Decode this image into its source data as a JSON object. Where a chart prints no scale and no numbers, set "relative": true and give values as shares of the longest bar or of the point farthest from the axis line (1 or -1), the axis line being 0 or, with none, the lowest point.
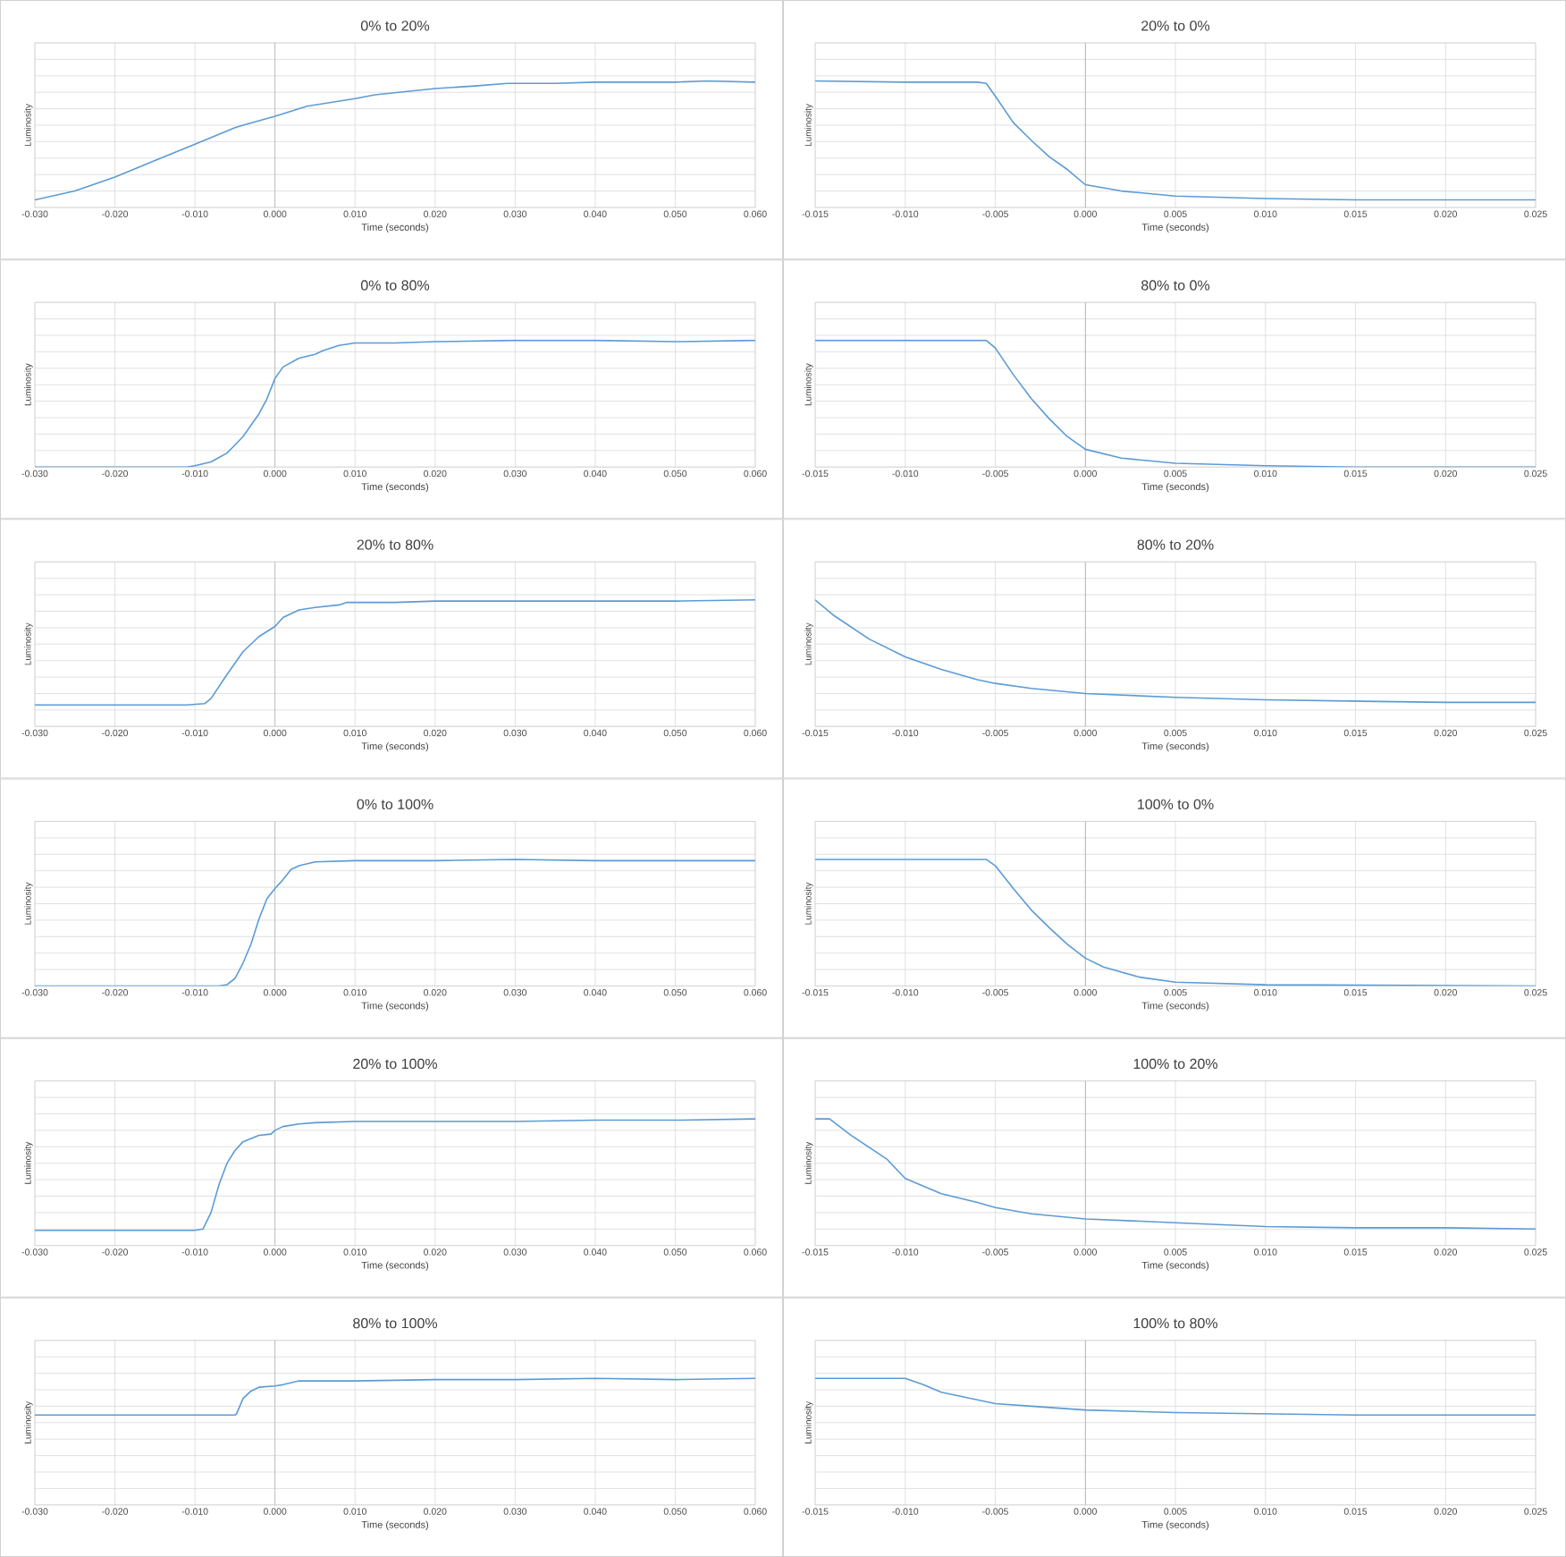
{
  "chart_data": [
    {
      "type": "line",
      "title": "0% to 20%",
      "xlabel": "Time (seconds)",
      "ylabel": "Luminosity",
      "relative": true,
      "grid": true,
      "tick_labels": "x",
      "color": "#5b9bd5",
      "xlim": [
        -0.03,
        0.06
      ],
      "xticks": [
        {
          "value": -0.03,
          "label": "-0.030"
        },
        {
          "value": -0.02,
          "label": "-0.020"
        },
        {
          "value": -0.01,
          "label": "-0.010"
        },
        {
          "value": 0,
          "label": "0.000"
        },
        {
          "value": 0.01,
          "label": "0.010"
        },
        {
          "value": 0.02,
          "label": "0.020"
        },
        {
          "value": 0.03,
          "label": "0.030"
        },
        {
          "value": 0.04,
          "label": "0.040"
        },
        {
          "value": 0.05,
          "label": "0.050"
        },
        {
          "value": 0.06,
          "label": "0.060"
        }
      ],
      "x": [
        -0.03,
        -0.025,
        -0.02,
        -0.015,
        -0.01,
        -0.005,
        -0.004,
        0.0,
        0.004,
        0.01,
        0.0125,
        0.02,
        0.025,
        0.029,
        0.035,
        0.04,
        0.045,
        0.05,
        0.054,
        0.06
      ],
      "values": [
        0.06,
        0.13,
        0.24,
        0.37,
        0.5,
        0.63,
        0.65,
        0.72,
        0.8,
        0.86,
        0.89,
        0.94,
        0.96,
        0.98,
        0.98,
        0.99,
        0.99,
        0.99,
        1.0,
        0.99
      ]
    },
    {
      "type": "line",
      "title": "20% to 0%",
      "xlabel": "Time (seconds)",
      "ylabel": "Luminosity",
      "relative": true,
      "grid": true,
      "tick_labels": "x",
      "color": "#5b9bd5",
      "xlim": [
        -0.015,
        0.025
      ],
      "xticks": [
        {
          "value": -0.015,
          "label": "-0.015"
        },
        {
          "value": -0.01,
          "label": "-0.010"
        },
        {
          "value": -0.005,
          "label": "-0.005"
        },
        {
          "value": 0,
          "label": "0.000"
        },
        {
          "value": 0.005,
          "label": "0.005"
        },
        {
          "value": 0.01,
          "label": "0.010"
        },
        {
          "value": 0.015,
          "label": "0.015"
        },
        {
          "value": 0.02,
          "label": "0.020"
        },
        {
          "value": 0.025,
          "label": "0.025"
        }
      ],
      "x": [
        -0.015,
        -0.01,
        -0.006,
        -0.0055,
        -0.005,
        -0.004,
        -0.003,
        -0.002,
        -0.001,
        0.0,
        0.002,
        0.005,
        0.01,
        0.015,
        0.02,
        0.025
      ],
      "values": [
        1.0,
        0.99,
        0.99,
        0.98,
        0.88,
        0.67,
        0.53,
        0.4,
        0.3,
        0.18,
        0.13,
        0.09,
        0.07,
        0.06,
        0.06,
        0.06
      ]
    },
    {
      "type": "line",
      "title": "0% to 80%",
      "xlabel": "Time (seconds)",
      "ylabel": "Luminosity",
      "relative": true,
      "grid": true,
      "tick_labels": "x",
      "color": "#5b9bd5",
      "xlim": [
        -0.03,
        0.06
      ],
      "xticks": [
        {
          "value": -0.03,
          "label": "-0.030"
        },
        {
          "value": -0.02,
          "label": "-0.020"
        },
        {
          "value": -0.01,
          "label": "-0.010"
        },
        {
          "value": 0,
          "label": "0.000"
        },
        {
          "value": 0.01,
          "label": "0.010"
        },
        {
          "value": 0.02,
          "label": "0.020"
        },
        {
          "value": 0.03,
          "label": "0.030"
        },
        {
          "value": 0.04,
          "label": "0.040"
        },
        {
          "value": 0.05,
          "label": "0.050"
        },
        {
          "value": 0.06,
          "label": "0.060"
        }
      ],
      "x": [
        -0.03,
        -0.011,
        -0.01,
        -0.008,
        -0.006,
        -0.004,
        -0.002,
        -0.001,
        0.0,
        0.001,
        0.003,
        0.005,
        0.006,
        0.008,
        0.01,
        0.015,
        0.02,
        0.03,
        0.04,
        0.05,
        0.06
      ],
      "values": [
        0.0,
        0.0,
        0.01,
        0.04,
        0.11,
        0.24,
        0.42,
        0.54,
        0.7,
        0.79,
        0.86,
        0.89,
        0.92,
        0.96,
        0.98,
        0.98,
        0.99,
        1.0,
        1.0,
        0.99,
        1.0
      ]
    },
    {
      "type": "line",
      "title": "80% to 0%",
      "xlabel": "Time (seconds)",
      "ylabel": "Luminosity",
      "relative": true,
      "grid": true,
      "tick_labels": "x",
      "color": "#5b9bd5",
      "xlim": [
        -0.015,
        0.025
      ],
      "xticks": [
        {
          "value": -0.015,
          "label": "-0.015"
        },
        {
          "value": -0.01,
          "label": "-0.010"
        },
        {
          "value": -0.005,
          "label": "-0.005"
        },
        {
          "value": 0,
          "label": "0.000"
        },
        {
          "value": 0.005,
          "label": "0.005"
        },
        {
          "value": 0.01,
          "label": "0.010"
        },
        {
          "value": 0.015,
          "label": "0.015"
        },
        {
          "value": 0.02,
          "label": "0.020"
        },
        {
          "value": 0.025,
          "label": "0.025"
        }
      ],
      "x": [
        -0.015,
        -0.0055,
        -0.005,
        -0.004,
        -0.003,
        -0.002,
        -0.001,
        0.0,
        0.002,
        0.005,
        0.01,
        0.015,
        0.025
      ],
      "values": [
        1.0,
        1.0,
        0.94,
        0.73,
        0.54,
        0.38,
        0.24,
        0.14,
        0.07,
        0.03,
        0.01,
        0.0,
        0.0
      ]
    },
    {
      "type": "line",
      "title": "20% to 80%",
      "xlabel": "Time (seconds)",
      "ylabel": "Luminosity",
      "relative": true,
      "grid": true,
      "tick_labels": "x",
      "color": "#5b9bd5",
      "xlim": [
        -0.03,
        0.06
      ],
      "xticks": [
        {
          "value": -0.03,
          "label": "-0.030"
        },
        {
          "value": -0.02,
          "label": "-0.020"
        },
        {
          "value": -0.01,
          "label": "-0.010"
        },
        {
          "value": 0,
          "label": "0.000"
        },
        {
          "value": 0.01,
          "label": "0.010"
        },
        {
          "value": 0.02,
          "label": "0.020"
        },
        {
          "value": 0.03,
          "label": "0.030"
        },
        {
          "value": 0.04,
          "label": "0.040"
        },
        {
          "value": 0.05,
          "label": "0.050"
        },
        {
          "value": 0.06,
          "label": "0.060"
        }
      ],
      "x": [
        -0.03,
        -0.02,
        -0.011,
        -0.0088,
        -0.008,
        -0.006,
        -0.004,
        -0.002,
        0.0,
        0.001,
        0.003,
        0.005,
        0.008,
        0.009,
        0.015,
        0.02,
        0.03,
        0.04,
        0.05,
        0.06
      ],
      "values": [
        0.17,
        0.17,
        0.17,
        0.18,
        0.22,
        0.41,
        0.59,
        0.71,
        0.79,
        0.86,
        0.92,
        0.94,
        0.96,
        0.98,
        0.98,
        0.99,
        0.99,
        0.99,
        0.99,
        1.0
      ]
    },
    {
      "type": "line",
      "title": "80% to 20%",
      "xlabel": "Time (seconds)",
      "ylabel": "Luminosity",
      "relative": true,
      "grid": true,
      "tick_labels": "x",
      "color": "#5b9bd5",
      "xlim": [
        -0.015,
        0.025
      ],
      "xticks": [
        {
          "value": -0.015,
          "label": "-0.015"
        },
        {
          "value": -0.01,
          "label": "-0.010"
        },
        {
          "value": -0.005,
          "label": "-0.005"
        },
        {
          "value": 0,
          "label": "0.000"
        },
        {
          "value": 0.005,
          "label": "0.005"
        },
        {
          "value": 0.01,
          "label": "0.010"
        },
        {
          "value": 0.015,
          "label": "0.015"
        },
        {
          "value": 0.02,
          "label": "0.020"
        },
        {
          "value": 0.025,
          "label": "0.025"
        }
      ],
      "x": [
        -0.015,
        -0.014,
        -0.012,
        -0.01,
        -0.008,
        -0.007,
        -0.006,
        -0.005,
        -0.003,
        0.0,
        0.005,
        0.01,
        0.015,
        0.02,
        0.025
      ],
      "values": [
        1.0,
        0.88,
        0.69,
        0.55,
        0.45,
        0.41,
        0.37,
        0.34,
        0.3,
        0.26,
        0.23,
        0.21,
        0.2,
        0.19,
        0.19
      ]
    },
    {
      "type": "line",
      "title": "0% to 100%",
      "xlabel": "Time (seconds)",
      "ylabel": "Luminosity",
      "relative": true,
      "grid": true,
      "tick_labels": "x",
      "color": "#5b9bd5",
      "xlim": [
        -0.03,
        0.06
      ],
      "xticks": [
        {
          "value": -0.03,
          "label": "-0.030"
        },
        {
          "value": -0.02,
          "label": "-0.020"
        },
        {
          "value": -0.01,
          "label": "-0.010"
        },
        {
          "value": 0,
          "label": "0.000"
        },
        {
          "value": 0.01,
          "label": "0.010"
        },
        {
          "value": 0.02,
          "label": "0.020"
        },
        {
          "value": 0.03,
          "label": "0.030"
        },
        {
          "value": 0.04,
          "label": "0.040"
        },
        {
          "value": 0.05,
          "label": "0.050"
        },
        {
          "value": 0.06,
          "label": "0.060"
        }
      ],
      "x": [
        -0.03,
        -0.007,
        -0.006,
        -0.005,
        -0.004,
        -0.003,
        -0.002,
        -0.001,
        0.0,
        0.001,
        0.002,
        0.003,
        0.005,
        0.01,
        0.02,
        0.03,
        0.04,
        0.05,
        0.06
      ],
      "values": [
        0.0,
        0.0,
        0.01,
        0.06,
        0.18,
        0.33,
        0.53,
        0.69,
        0.77,
        0.84,
        0.92,
        0.95,
        0.98,
        0.99,
        0.99,
        1.0,
        0.99,
        0.99,
        0.99
      ]
    },
    {
      "type": "line",
      "title": "100% to 0%",
      "xlabel": "Time (seconds)",
      "ylabel": "Luminosity",
      "relative": true,
      "grid": true,
      "tick_labels": "x",
      "color": "#5b9bd5",
      "xlim": [
        -0.015,
        0.025
      ],
      "xticks": [
        {
          "value": -0.015,
          "label": "-0.015"
        },
        {
          "value": -0.01,
          "label": "-0.010"
        },
        {
          "value": -0.005,
          "label": "-0.005"
        },
        {
          "value": 0,
          "label": "0.000"
        },
        {
          "value": 0.005,
          "label": "0.005"
        },
        {
          "value": 0.01,
          "label": "0.010"
        },
        {
          "value": 0.015,
          "label": "0.015"
        },
        {
          "value": 0.02,
          "label": "0.020"
        },
        {
          "value": 0.025,
          "label": "0.025"
        }
      ],
      "x": [
        -0.015,
        -0.0055,
        -0.005,
        -0.004,
        -0.003,
        -0.002,
        -0.001,
        0.0,
        0.001,
        0.003,
        0.005,
        0.01,
        0.025
      ],
      "values": [
        1.0,
        1.0,
        0.95,
        0.77,
        0.6,
        0.46,
        0.33,
        0.22,
        0.15,
        0.07,
        0.03,
        0.01,
        0.0
      ]
    },
    {
      "type": "line",
      "title": "20% to 100%",
      "xlabel": "Time (seconds)",
      "ylabel": "Luminosity",
      "relative": true,
      "grid": true,
      "tick_labels": "x",
      "color": "#5b9bd5",
      "xlim": [
        -0.03,
        0.06
      ],
      "xticks": [
        {
          "value": -0.03,
          "label": "-0.030"
        },
        {
          "value": -0.02,
          "label": "-0.020"
        },
        {
          "value": -0.01,
          "label": "-0.010"
        },
        {
          "value": 0,
          "label": "0.000"
        },
        {
          "value": 0.01,
          "label": "0.010"
        },
        {
          "value": 0.02,
          "label": "0.020"
        },
        {
          "value": 0.03,
          "label": "0.030"
        },
        {
          "value": 0.04,
          "label": "0.040"
        },
        {
          "value": 0.05,
          "label": "0.050"
        },
        {
          "value": 0.06,
          "label": "0.060"
        }
      ],
      "x": [
        -0.03,
        -0.01,
        -0.009,
        -0.008,
        -0.007,
        -0.006,
        -0.005,
        -0.004,
        -0.002,
        -0.0005,
        0.0,
        0.001,
        0.003,
        0.005,
        0.01,
        0.02,
        0.03,
        0.04,
        0.05,
        0.06
      ],
      "values": [
        0.12,
        0.12,
        0.13,
        0.26,
        0.48,
        0.65,
        0.75,
        0.82,
        0.87,
        0.88,
        0.91,
        0.94,
        0.96,
        0.97,
        0.98,
        0.98,
        0.98,
        0.99,
        0.99,
        1.0
      ]
    },
    {
      "type": "line",
      "title": "100% to 20%",
      "xlabel": "Time (seconds)",
      "ylabel": "Luminosity",
      "relative": true,
      "grid": true,
      "tick_labels": "x",
      "color": "#5b9bd5",
      "xlim": [
        -0.015,
        0.025
      ],
      "xticks": [
        {
          "value": -0.015,
          "label": "-0.015"
        },
        {
          "value": -0.01,
          "label": "-0.010"
        },
        {
          "value": -0.005,
          "label": "-0.005"
        },
        {
          "value": 0,
          "label": "0.000"
        },
        {
          "value": 0.005,
          "label": "0.005"
        },
        {
          "value": 0.01,
          "label": "0.010"
        },
        {
          "value": 0.015,
          "label": "0.015"
        },
        {
          "value": 0.02,
          "label": "0.020"
        },
        {
          "value": 0.025,
          "label": "0.025"
        }
      ],
      "x": [
        -0.015,
        -0.0142,
        -0.013,
        -0.011,
        -0.01,
        -0.008,
        -0.006,
        -0.005,
        -0.003,
        0.0,
        0.005,
        0.01,
        0.015,
        0.02,
        0.025
      ],
      "values": [
        1.0,
        1.0,
        0.87,
        0.68,
        0.53,
        0.41,
        0.34,
        0.3,
        0.25,
        0.21,
        0.18,
        0.15,
        0.14,
        0.14,
        0.13
      ]
    },
    {
      "type": "line",
      "title": "80% to 100%",
      "xlabel": "Time (seconds)",
      "ylabel": "Luminosity",
      "relative": true,
      "grid": true,
      "tick_labels": "x",
      "color": "#5b9bd5",
      "xlim": [
        -0.03,
        0.06
      ],
      "xticks": [
        {
          "value": -0.03,
          "label": "-0.030"
        },
        {
          "value": -0.02,
          "label": "-0.020"
        },
        {
          "value": -0.01,
          "label": "-0.010"
        },
        {
          "value": 0,
          "label": "0.000"
        },
        {
          "value": 0.01,
          "label": "0.010"
        },
        {
          "value": 0.02,
          "label": "0.020"
        },
        {
          "value": 0.03,
          "label": "0.030"
        },
        {
          "value": 0.04,
          "label": "0.040"
        },
        {
          "value": 0.05,
          "label": "0.050"
        },
        {
          "value": 0.06,
          "label": "0.060"
        }
      ],
      "x": [
        -0.03,
        -0.02,
        -0.005,
        -0.0048,
        -0.004,
        -0.003,
        -0.002,
        0.0,
        0.001,
        0.003,
        0.005,
        0.01,
        0.02,
        0.03,
        0.04,
        0.05,
        0.06
      ],
      "values": [
        0.71,
        0.71,
        0.71,
        0.72,
        0.84,
        0.9,
        0.93,
        0.94,
        0.95,
        0.98,
        0.98,
        0.98,
        0.99,
        0.99,
        1.0,
        0.99,
        1.0
      ]
    },
    {
      "type": "line",
      "title": "100% to 80%",
      "xlabel": "Time (seconds)",
      "ylabel": "Luminosity",
      "relative": true,
      "grid": true,
      "tick_labels": "x",
      "color": "#5b9bd5",
      "xlim": [
        -0.015,
        0.025
      ],
      "xticks": [
        {
          "value": -0.015,
          "label": "-0.015"
        },
        {
          "value": -0.01,
          "label": "-0.010"
        },
        {
          "value": -0.005,
          "label": "-0.005"
        },
        {
          "value": 0,
          "label": "0.000"
        },
        {
          "value": 0.005,
          "label": "0.005"
        },
        {
          "value": 0.01,
          "label": "0.010"
        },
        {
          "value": 0.015,
          "label": "0.015"
        },
        {
          "value": 0.02,
          "label": "0.020"
        },
        {
          "value": 0.025,
          "label": "0.025"
        }
      ],
      "x": [
        -0.015,
        -0.01,
        -0.009,
        -0.008,
        -0.006,
        -0.005,
        -0.003,
        0.0,
        0.005,
        0.01,
        0.015,
        0.02,
        0.025
      ],
      "values": [
        1.0,
        1.0,
        0.95,
        0.89,
        0.83,
        0.8,
        0.78,
        0.75,
        0.73,
        0.72,
        0.71,
        0.71,
        0.71
      ]
    }
  ]
}
